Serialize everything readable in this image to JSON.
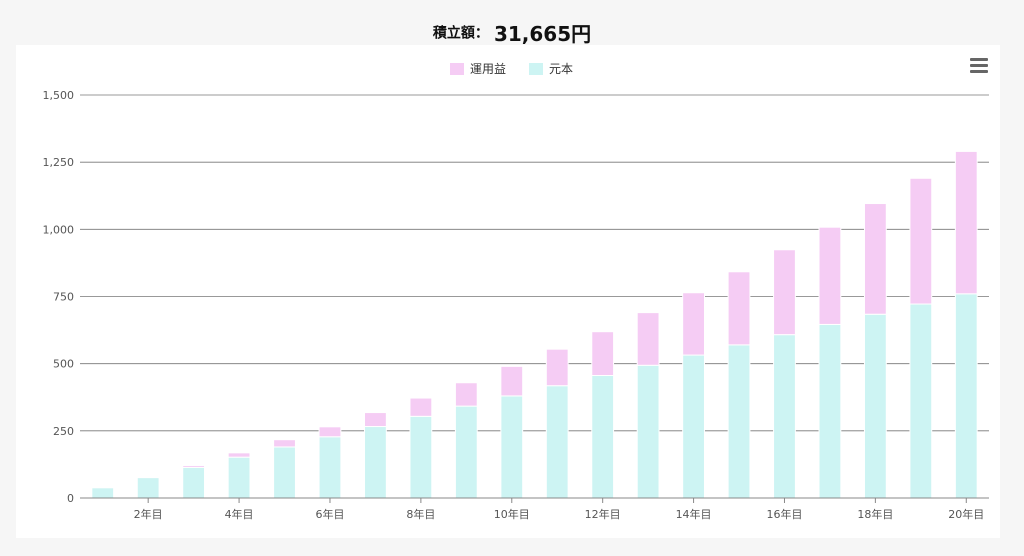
{
  "header": {
    "label": "積立額：",
    "amount": "31,665円"
  },
  "menu": {
    "icon": "hamburger-menu-icon"
  },
  "chart_data": {
    "type": "bar",
    "stacked": true,
    "categories": [
      "1年目",
      "2年目",
      "3年目",
      "4年目",
      "5年目",
      "6年目",
      "7年目",
      "8年目",
      "9年目",
      "10年目",
      "11年目",
      "12年目",
      "13年目",
      "14年目",
      "15年目",
      "16年目",
      "17年目",
      "18年目",
      "19年目",
      "20年目"
    ],
    "tick_labels": [
      "2年目",
      "4年目",
      "6年目",
      "8年目",
      "10年目",
      "12年目",
      "14年目",
      "16年目",
      "18年目",
      "20年目"
    ],
    "series": [
      {
        "name": "元本",
        "color": "#cdf4f3",
        "values": [
          38,
          76,
          114,
          152,
          190,
          228,
          266,
          304,
          342,
          380,
          418,
          456,
          494,
          532,
          570,
          608,
          646,
          684,
          722,
          760
        ]
      },
      {
        "name": "運用益",
        "color": "#f5ccf4",
        "values": [
          0,
          2,
          7,
          16,
          27,
          37,
          52,
          68,
          87,
          110,
          136,
          163,
          196,
          232,
          272,
          316,
          362,
          412,
          468,
          530
        ]
      }
    ],
    "legend_order": [
      "運用益",
      "元本"
    ],
    "ylim": [
      0,
      1500
    ],
    "yticks": [
      0,
      250,
      500,
      750,
      1000,
      1250,
      1500
    ],
    "ytick_labels": [
      "0",
      "250",
      "500",
      "750",
      "1,000",
      "1,250",
      "1,500"
    ],
    "grid": true,
    "legend_position": "top-center"
  }
}
